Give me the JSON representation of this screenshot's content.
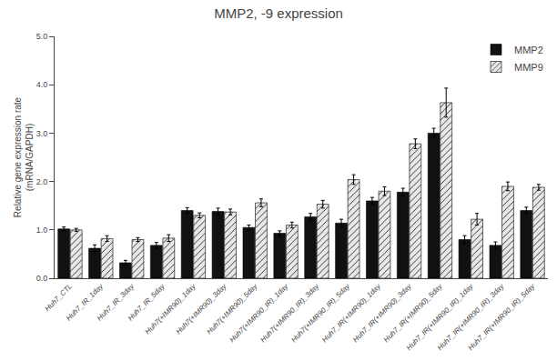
{
  "chart_data": {
    "type": "bar",
    "title": "MMP2, -9 expression",
    "ylabel": "Relative gene expression rate\n(mRNA/GAPDH)",
    "categories": [
      "Huh7_CTL",
      "Huh7_IR_1day",
      "Huh7_IR_3day",
      "Huh7_IR_5day",
      "Huh7(+IMR90)_1day",
      "Huh7(+IMR90)_3day",
      "Huh7(+IMR90)_5day",
      "Huh7(+IMR90_IR)_1day",
      "Huh7(+IMR90_IR)_3day",
      "Huh7(+IMR90_IR)_5day",
      "Huh7_IR(+IMR90)_1day",
      "Huh7_IR(+IMR90)_3day",
      "Huh7_IR(+IMR90)_5day",
      "Huh7_IR(+IMR90_IR)_1day",
      "Huh7_IR(+IMR90_IR)_3day",
      "Huh7_IR(+IMR90_IR)_5day"
    ],
    "series": [
      {
        "name": "MMP2",
        "color": "#111111",
        "values": [
          1.02,
          0.62,
          0.32,
          0.68,
          1.4,
          1.38,
          1.05,
          0.93,
          1.27,
          1.14,
          1.6,
          1.78,
          3.0,
          0.8,
          0.68,
          1.4
        ],
        "errors": [
          0.04,
          0.07,
          0.05,
          0.06,
          0.06,
          0.07,
          0.05,
          0.05,
          0.07,
          0.08,
          0.07,
          0.08,
          0.1,
          0.08,
          0.07,
          0.07
        ]
      },
      {
        "name": "MMP9",
        "color": "#e8e8e8",
        "values": [
          1.0,
          0.82,
          0.8,
          0.83,
          1.3,
          1.37,
          1.56,
          1.1,
          1.53,
          2.04,
          1.8,
          2.78,
          3.63,
          1.22,
          1.9,
          1.88
        ],
        "errors": [
          0.03,
          0.06,
          0.04,
          0.07,
          0.05,
          0.06,
          0.08,
          0.06,
          0.08,
          0.1,
          0.09,
          0.1,
          0.3,
          0.12,
          0.09,
          0.06
        ]
      }
    ],
    "ylim": [
      0.0,
      5.0
    ],
    "yticks": [
      {
        "value": 0,
        "label": "0.0"
      },
      {
        "value": 1,
        "label": "1.0"
      },
      {
        "value": 2,
        "label": "2.0"
      },
      {
        "value": 3,
        "label": "3.0"
      },
      {
        "value": 4,
        "label": "4.0"
      },
      {
        "value": 5,
        "label": "5.0"
      }
    ],
    "grid": false,
    "legend": "upper right"
  }
}
